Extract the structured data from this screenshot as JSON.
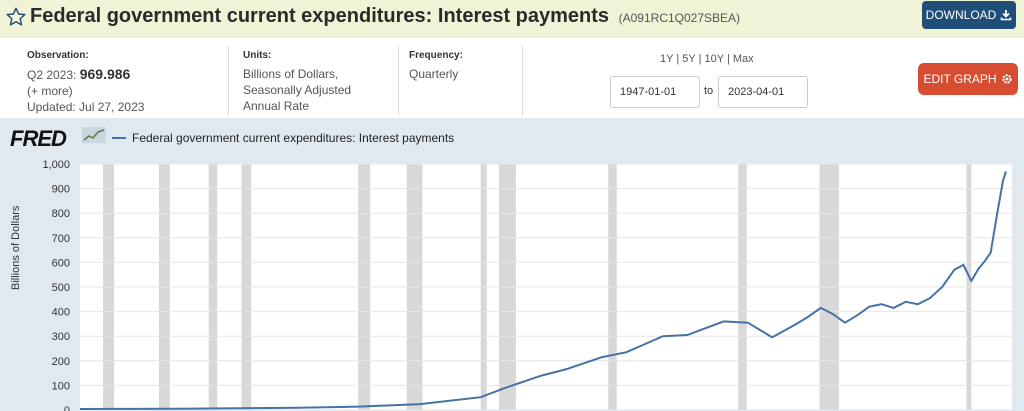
{
  "header": {
    "title": "Federal government current expenditures: Interest payments",
    "series_id": "(A091RC1Q027SBEA)",
    "download_label": "DOWNLOAD"
  },
  "info": {
    "observation_head": "Observation:",
    "observation_period": "Q2 2023:",
    "observation_value": "969.986",
    "more": "(+ more)",
    "updated": "Updated: Jul 27, 2023",
    "units_head": "Units:",
    "units_line1": "Billions of Dollars,",
    "units_line2": "Seasonally Adjusted",
    "units_line3": "Annual Rate",
    "frequency_head": "Frequency:",
    "frequency": "Quarterly"
  },
  "range": {
    "r1y": "1Y",
    "r5y": "5Y",
    "r10y": "10Y",
    "rmax": "Max",
    "sep": "|",
    "start": "1947-01-01",
    "to": "to",
    "end": "2023-04-01",
    "edit_label": "EDIT GRAPH"
  },
  "chart_data": {
    "type": "line",
    "logo": "FRED",
    "legend": "Federal government current expenditures: Interest payments",
    "ylabel": "Billions of Dollars",
    "ylim": [
      0,
      1000
    ],
    "yticks": [
      "0",
      "100",
      "200",
      "300",
      "400",
      "500",
      "600",
      "700",
      "800",
      "900",
      "1,000"
    ],
    "xlim": [
      1947.0,
      2023.75
    ],
    "line_color": "#4572a7",
    "recession_color": "#d8d8d8",
    "recessions": [
      [
        1948.9,
        1949.8
      ],
      [
        1953.5,
        1954.4
      ],
      [
        1957.6,
        1958.3
      ],
      [
        1960.3,
        1961.1
      ],
      [
        1969.9,
        1970.9
      ],
      [
        1973.9,
        1975.2
      ],
      [
        1980.0,
        1980.5
      ],
      [
        1981.5,
        1982.9
      ],
      [
        1990.5,
        1991.2
      ],
      [
        2001.2,
        2001.9
      ],
      [
        2007.9,
        2009.5
      ],
      [
        2020.0,
        2020.4
      ]
    ],
    "x": [
      1947,
      1950,
      1955,
      1960,
      1965,
      1970,
      1975,
      1980,
      1982,
      1985,
      1987,
      1990,
      1992,
      1995,
      1997,
      2000,
      2002,
      2004,
      2006,
      2007,
      2008,
      2009,
      2010,
      2011,
      2012,
      2013,
      2014,
      2015,
      2016,
      2017,
      2018,
      2019,
      2019.75,
      2020.4,
      2021,
      2021.5,
      2022,
      2022.5,
      2023,
      2023.25
    ],
    "values": [
      4,
      4.5,
      5,
      7,
      9,
      14,
      24,
      52,
      90,
      140,
      165,
      215,
      235,
      300,
      305,
      360,
      355,
      295,
      350,
      380,
      415,
      390,
      355,
      385,
      420,
      430,
      415,
      440,
      430,
      455,
      500,
      570,
      590,
      525,
      575,
      605,
      640,
      790,
      930,
      970
    ]
  }
}
